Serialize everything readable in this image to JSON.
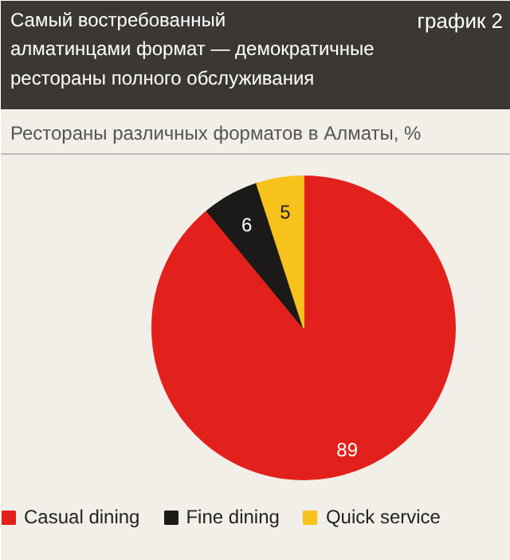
{
  "chart_data": {
    "type": "pie",
    "title": "Самый востребованный\nалматинцами формат — демократичные\nрестораны полного обслуживания",
    "subtitle": "Рестораны различных форматов в Алматы, %",
    "annotations": [
      "график 2"
    ],
    "categories": [
      "Casual dining",
      "Fine dining",
      "Quick service"
    ],
    "values": [
      89,
      6,
      5
    ],
    "colors": [
      "#e3211c",
      "#1c1a19",
      "#f6c21b"
    ],
    "data_labels": true,
    "legend": "bottom"
  }
}
